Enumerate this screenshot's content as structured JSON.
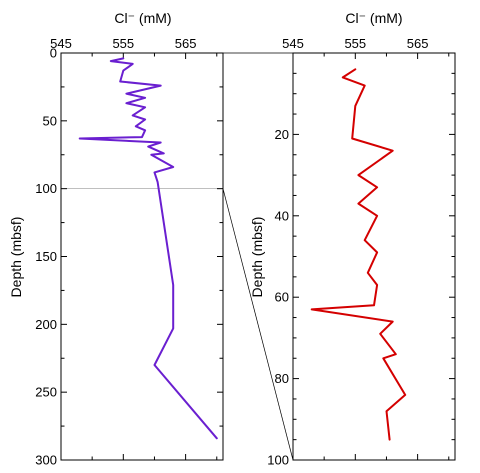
{
  "chart_data": [
    {
      "type": "line",
      "panel": "full-depth",
      "xlabel": "Cl⁻ (mM)",
      "ylabel": "Depth (mbsf)",
      "x_range": [
        545,
        571
      ],
      "y_range": [
        0,
        300
      ],
      "y_inverted": true,
      "x_ticks": [
        545,
        555,
        565
      ],
      "y_ticks": [
        0,
        50,
        100,
        150,
        200,
        250,
        300
      ],
      "x_minor_step": 5,
      "y_minor_step": 25,
      "reference_depth": 100,
      "series": [
        {
          "color": "#6a1fd0",
          "x": [
            555,
            553,
            556.5,
            555,
            554.5,
            561,
            555.5,
            558.5,
            555.5,
            558.5,
            556.5,
            558.5,
            557,
            558.5,
            558,
            548,
            561,
            559,
            561.5,
            559.5,
            563,
            560,
            560.5,
            563,
            563,
            560,
            570
          ],
          "y": [
            4,
            6,
            8,
            13,
            21,
            24,
            30,
            33,
            37,
            40,
            46,
            49,
            54,
            57,
            62,
            63,
            66,
            69,
            74,
            75,
            84,
            88,
            95,
            171,
            203,
            230,
            284
          ]
        }
      ]
    },
    {
      "type": "line",
      "panel": "upper-100m",
      "xlabel": "Cl⁻ (mM)",
      "ylabel": "Depth (mbsf)",
      "x_range": [
        545,
        571
      ],
      "y_range": [
        0,
        100
      ],
      "y_inverted": true,
      "x_ticks": [
        545,
        555,
        565
      ],
      "y_ticks": [
        20,
        40,
        60,
        80,
        100
      ],
      "x_minor_step": 5,
      "y_minor_step": 5,
      "series": [
        {
          "color": "#d40000",
          "x": [
            555,
            553,
            556.5,
            555,
            554.5,
            561,
            555.5,
            558.5,
            555.5,
            558.5,
            556.5,
            558.5,
            557,
            558.5,
            558,
            548,
            561,
            559,
            561.5,
            559.5,
            563,
            560,
            560.5
          ],
          "y": [
            4,
            6,
            8,
            13,
            21,
            24,
            30,
            33,
            37,
            40,
            46,
            49,
            54,
            57,
            62,
            63,
            66,
            69,
            74,
            75,
            84,
            88,
            95
          ]
        }
      ]
    }
  ]
}
